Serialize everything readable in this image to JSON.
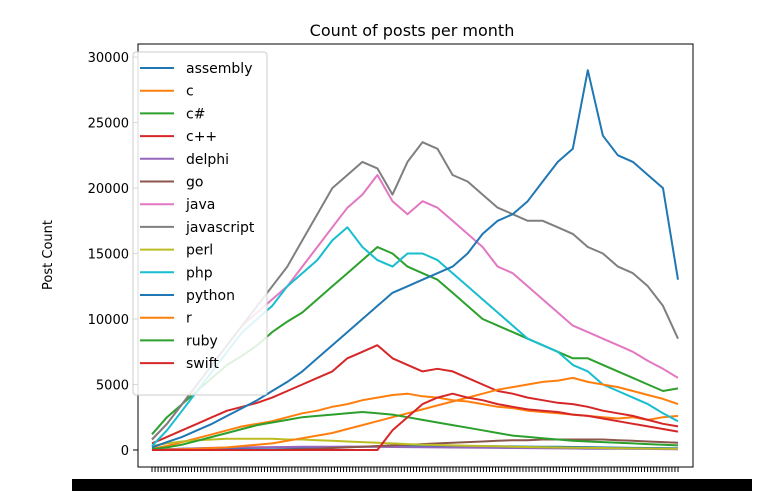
{
  "chart_data": {
    "type": "line",
    "title": "Count of posts per month",
    "ylabel": "Post Count",
    "xlabel": "",
    "ylim": [
      -1300,
      31000
    ],
    "yticks": [
      0,
      5000,
      10000,
      15000,
      20000,
      25000,
      30000
    ],
    "ytick_labels": [
      "0",
      "5000",
      "10000",
      "15000",
      "20000",
      "25000",
      "30000"
    ],
    "x_tick_count": 174,
    "legend_position": "upper left",
    "grid": false,
    "colors": {
      "assembly": "#1f77b4",
      "c": "#ff7f0e",
      "c#": "#2ca02c",
      "c++": "#d62728",
      "delphi": "#9467bd",
      "go": "#8c564b",
      "java": "#e377c2",
      "javascript": "#7f7f7f",
      "perl": "#bcbd22",
      "php": "#17becf",
      "python": "#1f77b4",
      "r": "#ff7f0e",
      "ruby": "#2ca02c",
      "swift": "#d62728"
    },
    "series": [
      {
        "name": "assembly",
        "values": [
          20,
          60,
          90,
          110,
          120,
          130,
          150,
          160,
          170,
          180,
          190,
          200,
          210,
          230,
          250,
          260,
          270,
          280,
          290,
          300,
          300,
          300,
          290,
          280,
          270,
          260,
          250,
          240,
          230,
          220,
          200,
          180,
          160,
          150,
          140,
          130
        ]
      },
      {
        "name": "c",
        "values": [
          100,
          300,
          600,
          900,
          1200,
          1500,
          1800,
          2000,
          2200,
          2500,
          2800,
          3000,
          3300,
          3500,
          3800,
          4000,
          4200,
          4300,
          4100,
          4000,
          3800,
          3700,
          3500,
          3300,
          3200,
          3000,
          2900,
          2800,
          2700,
          2600,
          2500,
          2400,
          2500,
          2300,
          2500,
          2600
        ]
      },
      {
        "name": "c#",
        "values": [
          1200,
          2500,
          3500,
          4500,
          5500,
          6500,
          7200,
          8000,
          9000,
          9800,
          10500,
          11500,
          12500,
          13500,
          14500,
          15500,
          15000,
          14000,
          13500,
          13000,
          12000,
          11000,
          10000,
          9500,
          9000,
          8500,
          8000,
          7500,
          7000,
          7000,
          6500,
          6000,
          5500,
          5000,
          4500,
          4700
        ]
      },
      {
        "name": "c++",
        "values": [
          500,
          1000,
          1500,
          2000,
          2500,
          3000,
          3300,
          3600,
          4000,
          4500,
          5000,
          5500,
          6000,
          7000,
          7500,
          8000,
          7000,
          6500,
          6000,
          6200,
          6000,
          5500,
          5000,
          4500,
          4300,
          4000,
          3800,
          3600,
          3500,
          3300,
          3000,
          2800,
          2600,
          2300,
          2000,
          1800
        ]
      },
      {
        "name": "delphi",
        "values": [
          20,
          60,
          100,
          130,
          160,
          180,
          200,
          210,
          220,
          230,
          240,
          250,
          250,
          260,
          250,
          240,
          230,
          220,
          210,
          200,
          190,
          180,
          170,
          160,
          150,
          140,
          130,
          120,
          110,
          100,
          100,
          90,
          80,
          80,
          70,
          60
        ]
      },
      {
        "name": "go",
        "values": [
          0,
          0,
          0,
          0,
          0,
          0,
          0,
          0,
          0,
          30,
          60,
          100,
          150,
          200,
          250,
          300,
          350,
          400,
          450,
          500,
          550,
          600,
          650,
          700,
          750,
          750,
          800,
          800,
          800,
          800,
          800,
          750,
          700,
          650,
          600,
          550
        ]
      },
      {
        "name": "java",
        "values": [
          800,
          2000,
          3500,
          5000,
          6500,
          8000,
          9500,
          10500,
          11500,
          12500,
          14000,
          15500,
          17000,
          18500,
          19500,
          21000,
          19000,
          18000,
          19000,
          18500,
          17500,
          16500,
          15500,
          14000,
          13500,
          12500,
          11500,
          10500,
          9500,
          9000,
          8500,
          8000,
          7500,
          6800,
          6200,
          5500
        ]
      },
      {
        "name": "javascript",
        "values": [
          800,
          2000,
          3500,
          5000,
          6500,
          8000,
          9500,
          11000,
          12500,
          14000,
          16000,
          18000,
          20000,
          21000,
          22000,
          21500,
          19500,
          22000,
          23500,
          23000,
          21000,
          20500,
          19500,
          18500,
          18000,
          17500,
          17500,
          17000,
          16500,
          15500,
          15000,
          14000,
          13500,
          12500,
          11000,
          8500
        ]
      },
      {
        "name": "perl",
        "values": [
          300,
          500,
          650,
          750,
          800,
          850,
          850,
          850,
          850,
          800,
          800,
          750,
          700,
          650,
          600,
          550,
          500,
          450,
          400,
          380,
          350,
          320,
          300,
          280,
          250,
          230,
          210,
          190,
          170,
          160,
          150,
          130,
          120,
          110,
          100,
          90
        ]
      },
      {
        "name": "php",
        "values": [
          300,
          1500,
          3000,
          4500,
          6000,
          7500,
          9000,
          10000,
          11000,
          12500,
          13500,
          14500,
          16000,
          17000,
          15500,
          14500,
          14000,
          15000,
          15000,
          14500,
          13500,
          12500,
          11500,
          10500,
          9500,
          8500,
          8000,
          7500,
          6500,
          6000,
          5000,
          4500,
          4000,
          3500,
          2800,
          2200
        ]
      },
      {
        "name": "python",
        "values": [
          200,
          600,
          1000,
          1500,
          2000,
          2600,
          3200,
          3800,
          4500,
          5200,
          6000,
          7000,
          8000,
          9000,
          10000,
          11000,
          12000,
          12500,
          13000,
          13500,
          14000,
          15000,
          16500,
          17500,
          18000,
          19000,
          20500,
          22000,
          23000,
          29000,
          24000,
          22500,
          22000,
          21000,
          20000,
          13000
        ]
      },
      {
        "name": "r",
        "values": [
          0,
          30,
          60,
          100,
          150,
          200,
          300,
          400,
          500,
          700,
          900,
          1100,
          1300,
          1600,
          1900,
          2200,
          2500,
          2800,
          3100,
          3400,
          3700,
          4000,
          4300,
          4600,
          4800,
          5000,
          5200,
          5300,
          5500,
          5200,
          5000,
          4800,
          4500,
          4200,
          3900,
          3500
        ]
      },
      {
        "name": "ruby",
        "values": [
          50,
          200,
          400,
          700,
          1000,
          1300,
          1600,
          1900,
          2100,
          2300,
          2500,
          2600,
          2700,
          2800,
          2900,
          2800,
          2700,
          2500,
          2300,
          2100,
          1900,
          1700,
          1500,
          1300,
          1100,
          1000,
          900,
          800,
          700,
          650,
          600,
          550,
          500,
          450,
          400,
          350
        ]
      },
      {
        "name": "swift",
        "values": [
          0,
          0,
          0,
          0,
          0,
          0,
          0,
          0,
          0,
          0,
          0,
          0,
          0,
          0,
          0,
          0,
          1500,
          2500,
          3500,
          4000,
          4300,
          4000,
          3800,
          3500,
          3300,
          3100,
          3000,
          2900,
          2700,
          2600,
          2400,
          2200,
          2000,
          1800,
          1600,
          1400
        ]
      }
    ]
  }
}
